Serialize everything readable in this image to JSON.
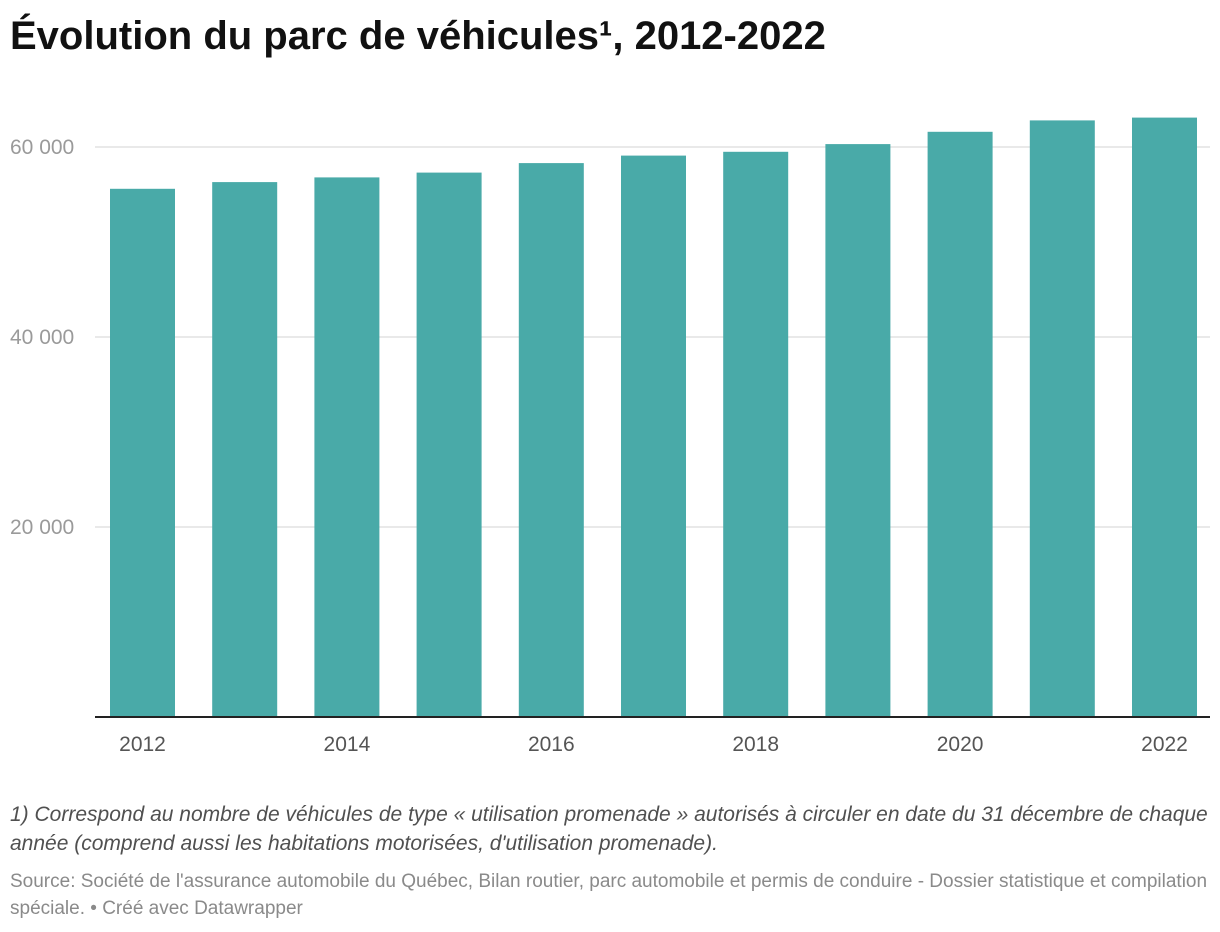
{
  "title": "Évolution du parc de véhicules¹, 2012-2022",
  "note": "1) Correspond au nombre de véhicules de type « utilisation promenade » autorisés à circuler en date du 31 décembre de chaque année (comprend aussi les habitations motorisées, d'utilisation promenade).",
  "source": "Source: Société de l'assurance automobile du Québec, Bilan routier, parc automobile et permis de conduire - Dossier statistique et compilation spéciale. • Créé avec Datawrapper",
  "colors": {
    "bar": "#49aaa8",
    "grid": "#e2e2e2",
    "axis": "#222222"
  },
  "chart_data": {
    "type": "bar",
    "categories": [
      "2012",
      "2013",
      "2014",
      "2015",
      "2016",
      "2017",
      "2018",
      "2019",
      "2020",
      "2021",
      "2022"
    ],
    "values": [
      55600,
      56300,
      56800,
      57300,
      58300,
      59100,
      59500,
      60300,
      61600,
      62800,
      63100
    ],
    "x_tick_labels": [
      "2012",
      "2014",
      "2016",
      "2018",
      "2020",
      "2022"
    ],
    "y_ticks": [
      20000,
      40000,
      60000
    ],
    "y_tick_labels": [
      "20 000",
      "40 000",
      "60 000"
    ],
    "ylim": [
      0,
      64000
    ],
    "grid": true,
    "legend": "none",
    "xlabel": "",
    "ylabel": ""
  }
}
